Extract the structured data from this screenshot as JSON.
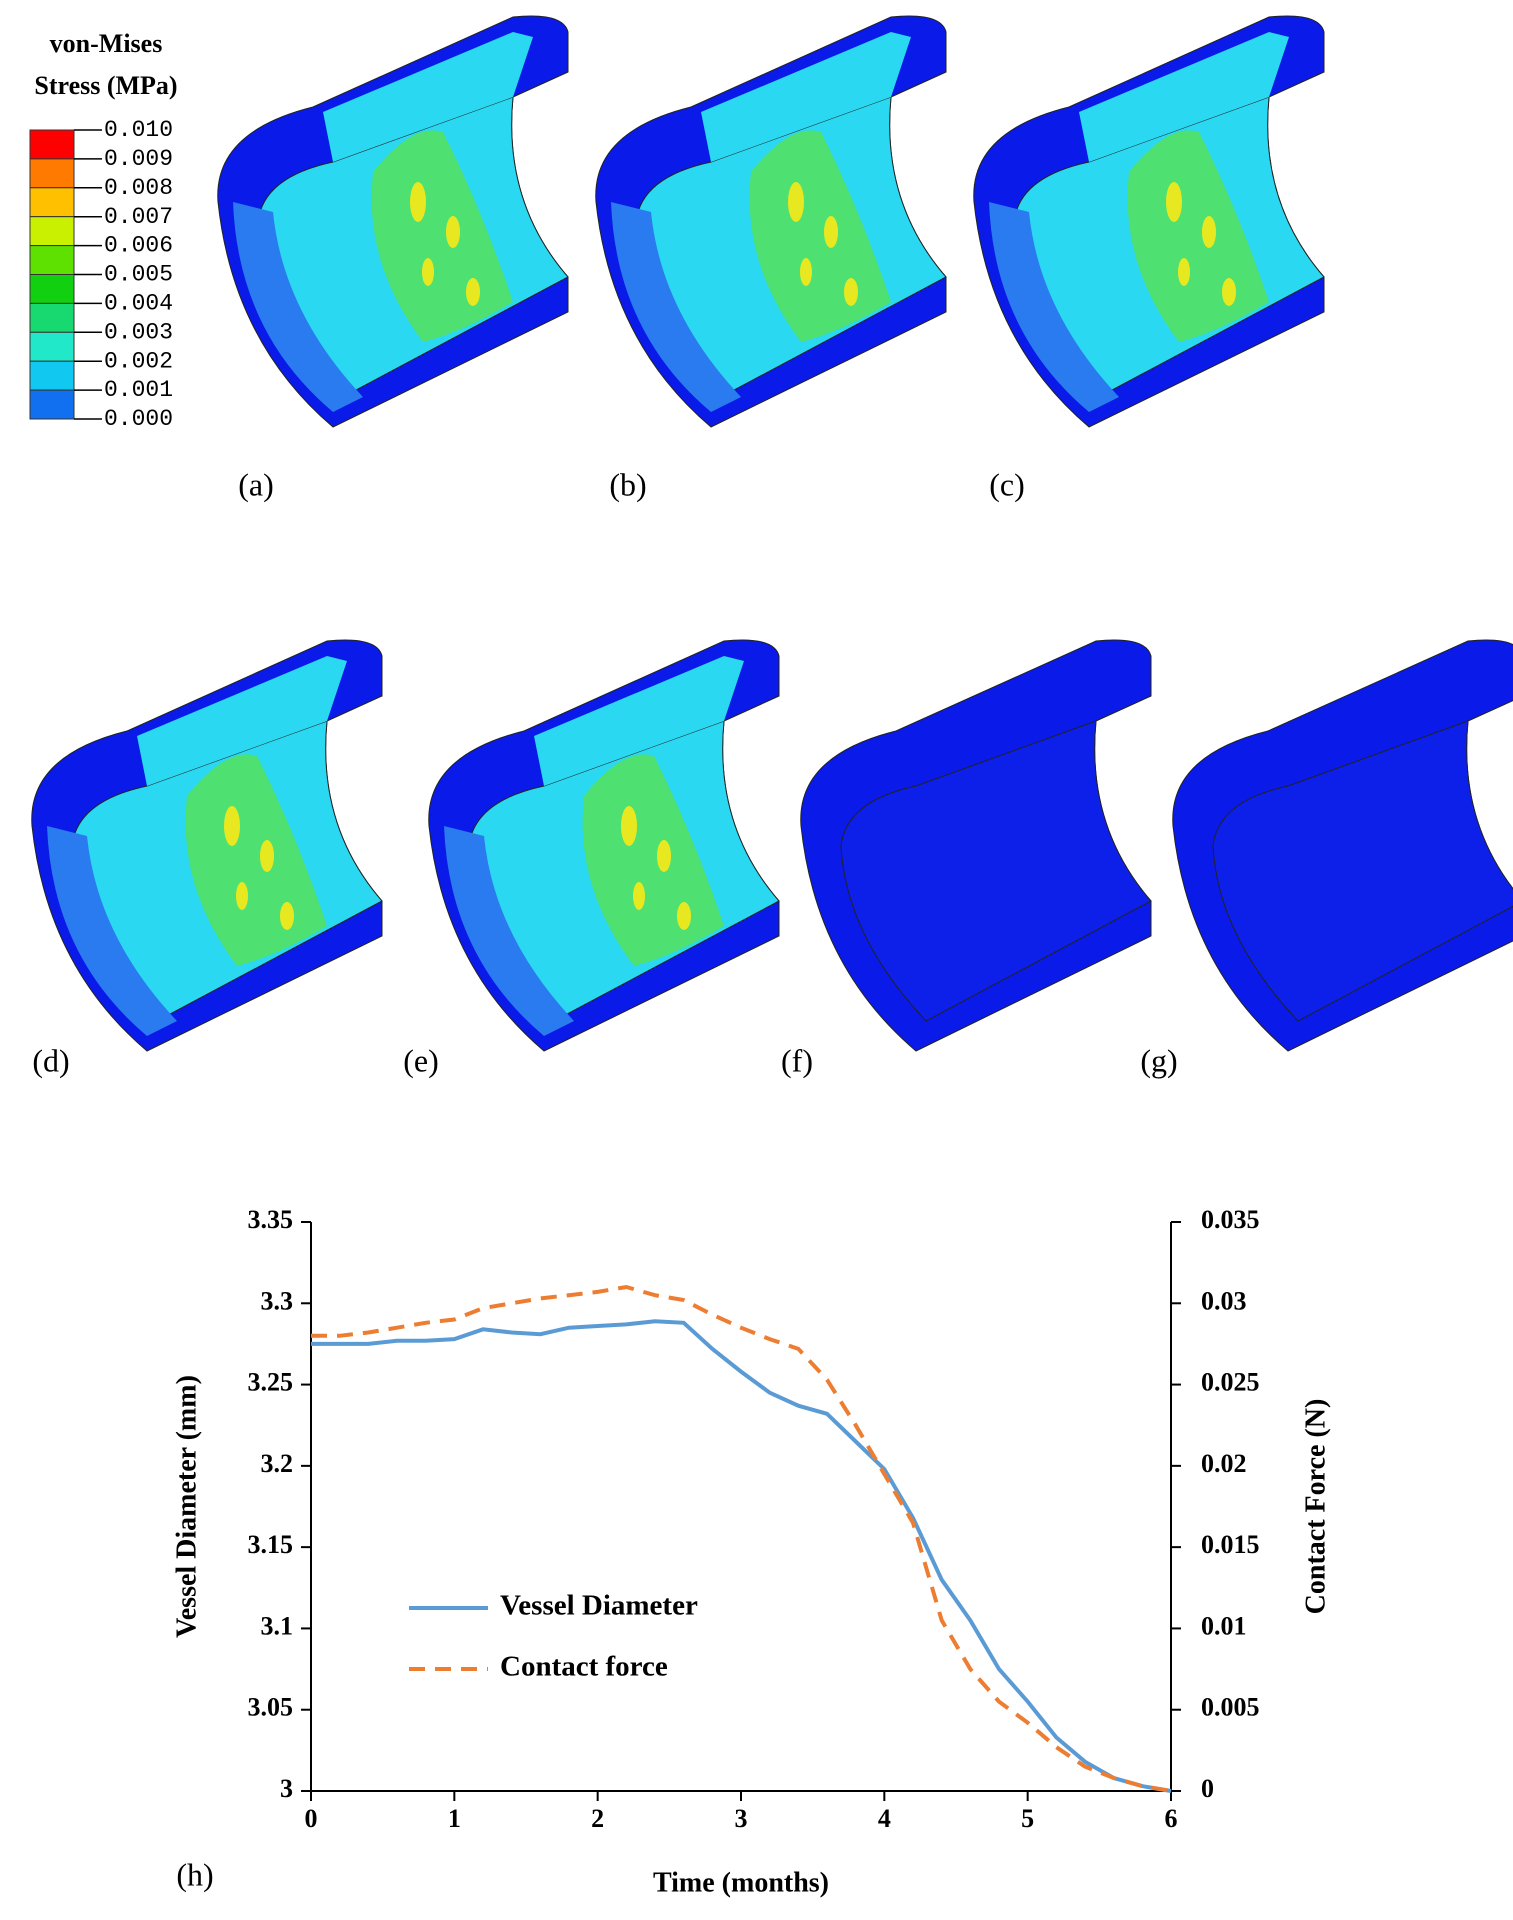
{
  "legend": {
    "title": [
      "von-Mises",
      "Stress (MPa)"
    ],
    "labels": [
      "0.010",
      "0.009",
      "0.008",
      "0.007",
      "0.006",
      "0.005",
      "0.004",
      "0.003",
      "0.002",
      "0.001",
      "0.000"
    ],
    "colors": [
      "#ff0000",
      "#ff7a00",
      "#ffc000",
      "#c8f000",
      "#5ee000",
      "#10d010",
      "#18d870",
      "#20e8c8",
      "#10c8f0",
      "#1070f0"
    ]
  },
  "panels": [
    "(a)",
    "(b)",
    "(c)",
    "(d)",
    "(e)",
    "(f)",
    "(g)",
    "(h)"
  ],
  "chart_data": {
    "type": "line",
    "xlabel": "Time (months)",
    "ylabel": "Vessel Diameter (mm)",
    "y2label": "Contact Force (N)",
    "x": [
      0,
      0.2,
      0.4,
      0.6,
      0.8,
      1.0,
      1.2,
      1.4,
      1.6,
      1.8,
      2.0,
      2.2,
      2.4,
      2.6,
      2.8,
      3.0,
      3.2,
      3.4,
      3.6,
      3.8,
      4.0,
      4.2,
      4.4,
      4.6,
      4.8,
      5.0,
      5.2,
      5.4,
      5.6,
      5.8,
      6.0
    ],
    "series": [
      {
        "name": "Vessel Diameter",
        "color": "#5b9bd5",
        "line_style": "solid",
        "values": [
          3.275,
          3.275,
          3.275,
          3.277,
          3.277,
          3.278,
          3.284,
          3.282,
          3.281,
          3.285,
          3.286,
          3.287,
          3.289,
          3.288,
          3.272,
          3.258,
          3.245,
          3.237,
          3.232,
          3.215,
          3.198,
          3.168,
          3.13,
          3.105,
          3.075,
          3.055,
          3.033,
          3.018,
          3.008,
          3.003,
          3.0
        ]
      },
      {
        "name": "Contact force",
        "color": "#ed7d31",
        "line_style": "dashed",
        "axis": "y2",
        "values": [
          0.028,
          0.028,
          0.0282,
          0.0285,
          0.0288,
          0.029,
          0.0297,
          0.03,
          0.0303,
          0.0305,
          0.0307,
          0.031,
          0.0305,
          0.0302,
          0.0293,
          0.0285,
          0.0278,
          0.0272,
          0.0253,
          0.0225,
          0.0195,
          0.0165,
          0.0105,
          0.0075,
          0.0055,
          0.0042,
          0.0027,
          0.0015,
          0.0008,
          0.0003,
          0
        ]
      }
    ],
    "xlim": [
      0,
      6
    ],
    "xticks": [
      0,
      1,
      2,
      3,
      4,
      5,
      6
    ],
    "ylim": [
      3,
      3.35
    ],
    "yticks": [
      3,
      3.05,
      3.1,
      3.15,
      3.2,
      3.25,
      3.3,
      3.35
    ],
    "y2lim": [
      0,
      0.035
    ],
    "y2ticks": [
      0,
      0.005,
      0.01,
      0.015,
      0.02,
      0.025,
      0.03,
      0.035
    ]
  }
}
